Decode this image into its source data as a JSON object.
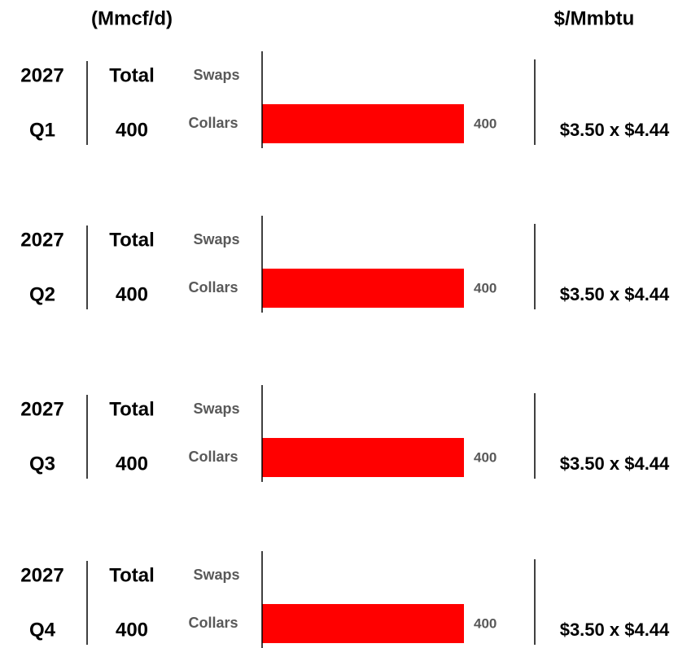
{
  "header": {
    "volume_unit": "(Mmcf/d)",
    "price_unit": "$/Mmbtu"
  },
  "quarters": [
    {
      "year": "2027",
      "quarter": "Q1",
      "total_label": "Total",
      "total": 400,
      "swaps_label": "Swaps",
      "collars_label": "Collars",
      "collars": 400,
      "price": "$3.50 x $4.44"
    },
    {
      "year": "2027",
      "quarter": "Q2",
      "total_label": "Total",
      "total": 400,
      "swaps_label": "Swaps",
      "collars_label": "Collars",
      "collars": 400,
      "price": "$3.50 x $4.44"
    },
    {
      "year": "2027",
      "quarter": "Q3",
      "total_label": "Total",
      "total": 400,
      "swaps_label": "Swaps",
      "collars_label": "Collars",
      "collars": 400,
      "price": "$3.50 x $4.44"
    },
    {
      "year": "2027",
      "quarter": "Q4",
      "total_label": "Total",
      "total": 400,
      "swaps_label": "Swaps",
      "collars_label": "Collars",
      "collars": 400,
      "price": "$3.50 x $4.44"
    }
  ]
}
